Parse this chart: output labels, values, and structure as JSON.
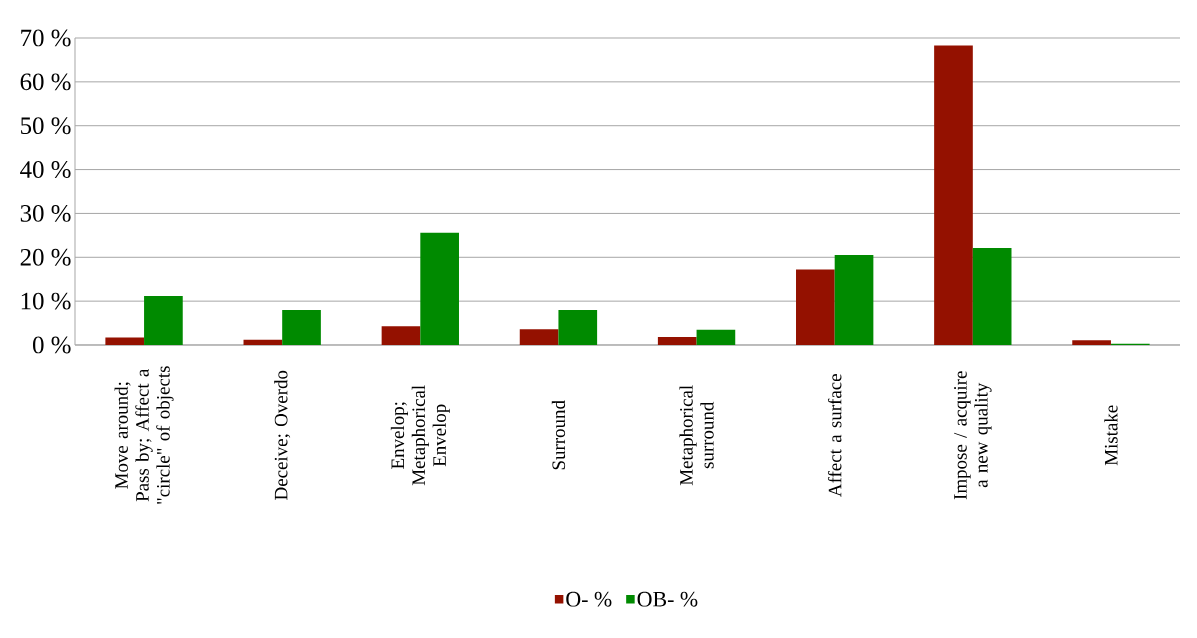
{
  "chart_data": {
    "type": "bar",
    "categories": [
      "Move around; Pass by; Affect a \"circle\" of objects",
      "Deceive; Overdo",
      "Envelop; Metaphorical Envelop",
      "Surround",
      "Metaphorical surround",
      "Affect a surface",
      "Impose / acquire a new quality",
      "Mistake"
    ],
    "series": [
      {
        "name": "O- %",
        "color": "#941100",
        "values": [
          1.7,
          1.2,
          4.3,
          3.6,
          1.8,
          17.2,
          68.3,
          1.1
        ]
      },
      {
        "name": "OB- %",
        "color": "#008a00",
        "values": [
          11.2,
          8.0,
          25.6,
          8.0,
          3.5,
          20.5,
          22.1,
          0.3
        ]
      }
    ],
    "ylim": [
      0,
      70
    ],
    "yticks": [
      {
        "value": 0,
        "label": "0 %"
      },
      {
        "value": 10,
        "label": "10 %"
      },
      {
        "value": 20,
        "label": "20 %"
      },
      {
        "value": 30,
        "label": "30 %"
      },
      {
        "value": 40,
        "label": "40 %"
      },
      {
        "value": 50,
        "label": "50 %"
      },
      {
        "value": 60,
        "label": "60 %"
      },
      {
        "value": 70,
        "label": "70 %"
      }
    ],
    "grid": "y",
    "legend": "bottom"
  }
}
